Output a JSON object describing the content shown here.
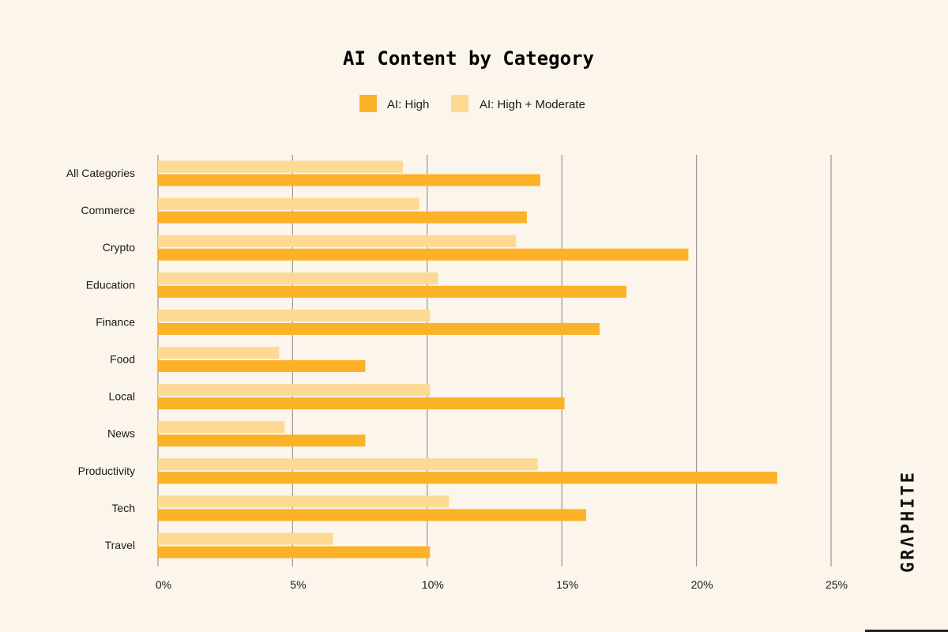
{
  "brand": "GRΛPHITE",
  "colors": {
    "high": "#FBB227",
    "high_moderate": "#FDD993",
    "background": "#FBF5EB"
  },
  "chart_data": {
    "type": "bar",
    "orientation": "horizontal",
    "title": "AI Content by Category",
    "legend_position": "top-center",
    "grid": true,
    "xlim": [
      0,
      25
    ],
    "x_ticks": [
      0,
      5,
      10,
      15,
      20,
      25
    ],
    "x_tick_labels": [
      "0%",
      "5%",
      "10%",
      "15%",
      "20%",
      "25%"
    ],
    "categories": [
      "All Categories",
      "Commerce",
      "Crypto",
      "Education",
      "Finance",
      "Food",
      "Local",
      "News",
      "Productivity",
      "Tech",
      "Travel"
    ],
    "series": [
      {
        "name": "AI: High",
        "values": [
          14.2,
          13.7,
          19.7,
          17.4,
          16.4,
          7.7,
          15.1,
          7.7,
          23.0,
          15.9,
          10.1
        ]
      },
      {
        "name": "AI: High + Moderate",
        "values": [
          9.1,
          9.7,
          13.3,
          10.4,
          10.1,
          4.5,
          10.1,
          4.7,
          14.1,
          10.8,
          6.5
        ]
      }
    ]
  }
}
